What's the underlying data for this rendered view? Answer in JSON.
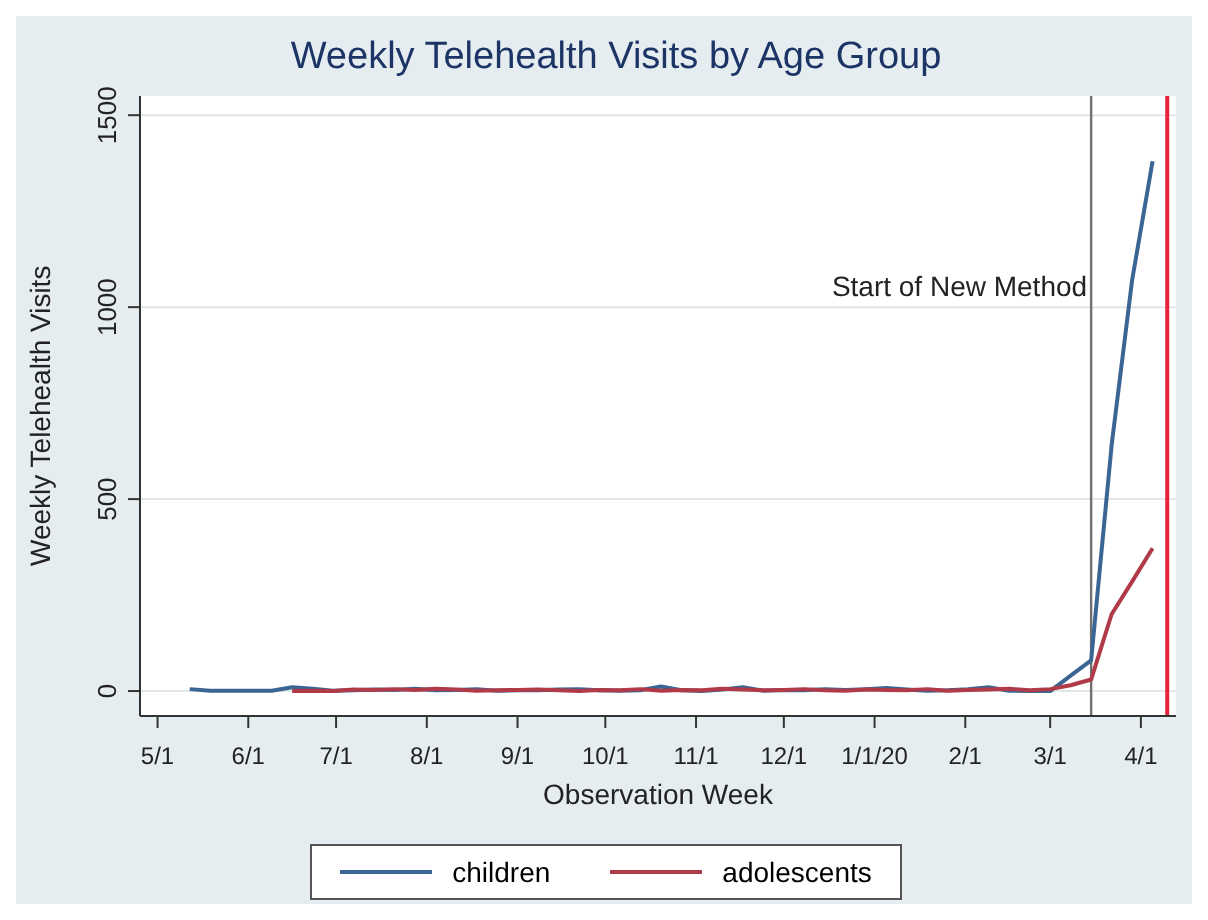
{
  "chart_data": {
    "type": "line",
    "title": "Weekly Telehealth Visits by Age Group",
    "xlabel": "Observation Week",
    "ylabel": "Weekly Telehealth Visits",
    "x": [
      "2019-05-12",
      "2019-05-19",
      "2019-05-26",
      "2019-06-02",
      "2019-06-09",
      "2019-06-16",
      "2019-06-23",
      "2019-06-30",
      "2019-07-07",
      "2019-07-14",
      "2019-07-21",
      "2019-07-28",
      "2019-08-04",
      "2019-08-11",
      "2019-08-18",
      "2019-08-25",
      "2019-09-01",
      "2019-09-08",
      "2019-09-15",
      "2019-09-22",
      "2019-09-29",
      "2019-10-06",
      "2019-10-13",
      "2019-10-20",
      "2019-10-27",
      "2019-11-03",
      "2019-11-10",
      "2019-11-17",
      "2019-11-24",
      "2019-12-01",
      "2019-12-08",
      "2019-12-15",
      "2019-12-22",
      "2019-12-29",
      "2020-01-05",
      "2020-01-12",
      "2020-01-19",
      "2020-01-26",
      "2020-02-02",
      "2020-02-09",
      "2020-02-16",
      "2020-02-23",
      "2020-03-01",
      "2020-03-08",
      "2020-03-15",
      "2020-03-22",
      "2020-03-29",
      "2020-04-05"
    ],
    "series": [
      {
        "name": "children",
        "color": "#3b6593",
        "values": [
          5,
          1,
          1,
          1,
          1,
          10,
          6,
          1,
          2,
          4,
          3,
          6,
          2,
          3,
          5,
          1,
          2,
          2,
          4,
          5,
          2,
          1,
          2,
          12,
          2,
          0,
          4,
          10,
          1,
          3,
          2,
          5,
          3,
          5,
          8,
          4,
          1,
          2,
          5,
          10,
          1,
          0,
          0,
          40,
          80,
          640,
          1070,
          1380
        ]
      },
      {
        "name": "adolescents",
        "color": "#b03a48",
        "values": [
          null,
          null,
          null,
          null,
          null,
          0,
          1,
          0,
          4,
          3,
          5,
          3,
          6,
          4,
          1,
          2,
          3,
          4,
          2,
          0,
          3,
          2,
          5,
          1,
          3,
          2,
          6,
          4,
          2,
          3,
          5,
          2,
          1,
          4,
          3,
          2,
          5,
          1,
          3,
          4,
          6,
          2,
          5,
          15,
          30,
          200,
          285,
          372
        ]
      }
    ],
    "xlim": [
      "2019-04-25",
      "2020-04-13"
    ],
    "xticks": [
      {
        "value": "2019-05-01",
        "label": "5/1"
      },
      {
        "value": "2019-06-01",
        "label": "6/1"
      },
      {
        "value": "2019-07-01",
        "label": "7/1"
      },
      {
        "value": "2019-08-01",
        "label": "8/1"
      },
      {
        "value": "2019-09-01",
        "label": "9/1"
      },
      {
        "value": "2019-10-01",
        "label": "10/1"
      },
      {
        "value": "2019-11-01",
        "label": "11/1"
      },
      {
        "value": "2019-12-01",
        "label": "12/1"
      },
      {
        "value": "2020-01-01",
        "label": "1/1/20"
      },
      {
        "value": "2020-02-01",
        "label": "2/1"
      },
      {
        "value": "2020-03-01",
        "label": "3/1"
      },
      {
        "value": "2020-04-01",
        "label": "4/1"
      }
    ],
    "ylim": [
      -65,
      1550
    ],
    "yticks": [
      0,
      500,
      1000,
      1500
    ],
    "ref_lines": [
      {
        "axis": "x",
        "value": "2020-03-15",
        "label": "Start of New Method",
        "color": "#707070"
      },
      {
        "axis": "x",
        "value": "2020-04-10",
        "color": "#e8213a"
      }
    ],
    "grid": "y",
    "legend": "bottom",
    "marker": "none",
    "line_style": "solid"
  }
}
